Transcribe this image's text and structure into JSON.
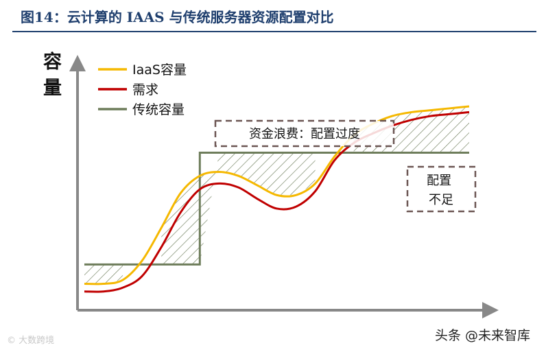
{
  "title": "图14：云计算的 IAAS 与传统服务器资源配置对比",
  "watermark_left": "© 大数跨境",
  "watermark_right": "头条 @未来智库",
  "chart_data": {
    "type": "line",
    "ylabel": "容量",
    "xlabel": "",
    "grid": false,
    "legend_position": "top-left",
    "x": [
      0,
      5,
      10,
      15,
      20,
      25,
      30,
      35,
      40,
      45,
      50,
      55,
      60,
      65,
      70,
      75,
      80,
      85,
      90,
      95,
      100
    ],
    "series": [
      {
        "name": "IaaS容量",
        "color": "#f5b800",
        "values": [
          8,
          8,
          10,
          20,
          37,
          55,
          64,
          66,
          64,
          59,
          54,
          54,
          60,
          74,
          85,
          91,
          95,
          97,
          98,
          99,
          100
        ]
      },
      {
        "name": "需求",
        "color": "#c00000",
        "values": [
          4,
          4,
          6,
          12,
          27,
          45,
          57,
          60,
          58,
          52,
          47,
          48,
          56,
          72,
          81,
          86,
          90,
          93,
          95,
          96,
          97
        ]
      },
      {
        "name": "传统容量",
        "color": "#6e7d5b",
        "values": [
          18,
          18,
          18,
          18,
          18,
          18,
          18,
          76,
          76,
          76,
          76,
          76,
          76,
          76,
          76,
          76,
          76,
          76,
          76,
          76,
          76
        ]
      }
    ],
    "annotations": [
      {
        "id": "waste",
        "text": "资金浪费：配置过度"
      },
      {
        "id": "shortage",
        "text": "配置不足"
      }
    ]
  }
}
